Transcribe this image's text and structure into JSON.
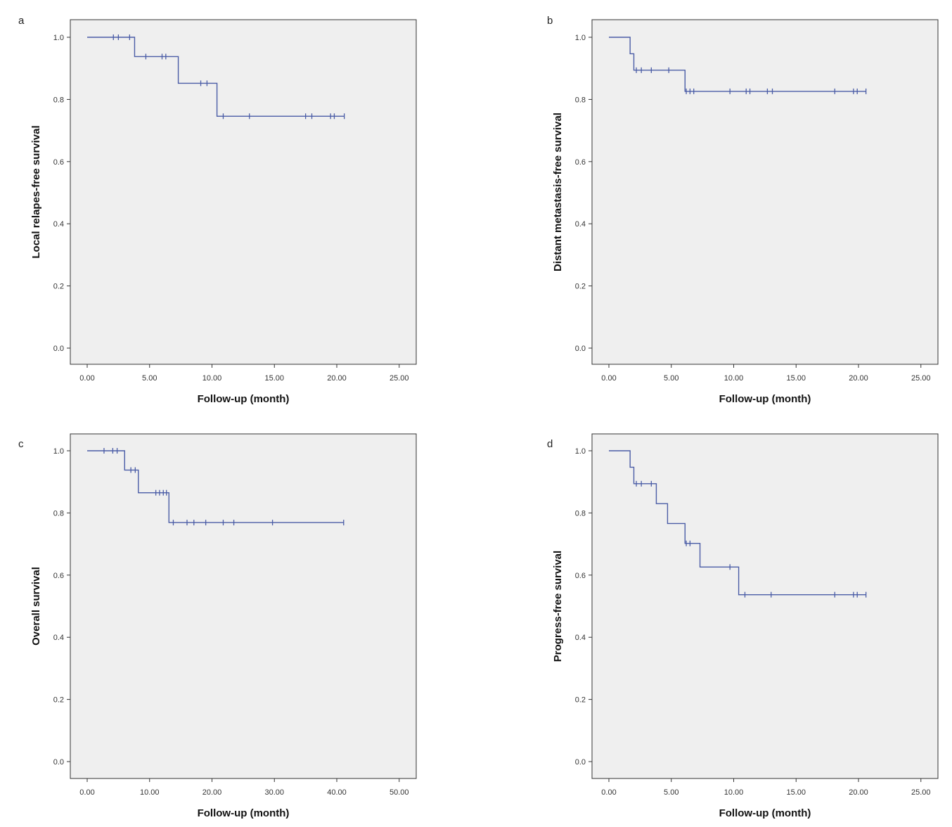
{
  "chart_data": [
    {
      "panel": "a",
      "type": "line",
      "subtype": "kaplan-meier",
      "xlabel": "Follow-up (month)",
      "ylabel": "Local relapes-free survival",
      "xlim": [
        0,
        25
      ],
      "ylim": [
        0,
        1
      ],
      "xticks": [
        "0.00",
        "5.00",
        "10.00",
        "15.00",
        "20.00",
        "25.00"
      ],
      "yticks": [
        "0.0",
        "0.2",
        "0.4",
        "0.6",
        "0.8",
        "1.0"
      ],
      "series": [
        {
          "name": "survival",
          "color": "#4a5ca6",
          "steps": [
            [
              0,
              1.0
            ],
            [
              3.8,
              0.938
            ],
            [
              7.3,
              0.852
            ],
            [
              10.4,
              0.746
            ],
            [
              20.6,
              0.746
            ]
          ],
          "censored": [
            [
              2.1,
              1.0
            ],
            [
              2.5,
              1.0
            ],
            [
              3.4,
              1.0
            ],
            [
              4.7,
              0.938
            ],
            [
              6.0,
              0.938
            ],
            [
              6.3,
              0.938
            ],
            [
              9.1,
              0.852
            ],
            [
              9.6,
              0.852
            ],
            [
              10.9,
              0.746
            ],
            [
              13.0,
              0.746
            ],
            [
              17.5,
              0.746
            ],
            [
              18.0,
              0.746
            ],
            [
              19.5,
              0.746
            ],
            [
              19.8,
              0.746
            ],
            [
              20.6,
              0.746
            ]
          ]
        }
      ]
    },
    {
      "panel": "b",
      "type": "line",
      "subtype": "kaplan-meier",
      "xlabel": "Follow-up (month)",
      "ylabel": "Distant metastasis-free survival",
      "xlim": [
        0,
        25
      ],
      "ylim": [
        0,
        1
      ],
      "xticks": [
        "0.00",
        "5.00",
        "10.00",
        "15.00",
        "20.00",
        "25.00"
      ],
      "yticks": [
        "0.0",
        "0.2",
        "0.4",
        "0.6",
        "0.8",
        "1.0"
      ],
      "series": [
        {
          "name": "survival",
          "color": "#4a5ca6",
          "steps": [
            [
              0,
              1.0
            ],
            [
              1.7,
              0.947
            ],
            [
              2.0,
              0.894
            ],
            [
              6.1,
              0.826
            ],
            [
              20.6,
              0.826
            ]
          ],
          "censored": [
            [
              2.2,
              0.894
            ],
            [
              2.6,
              0.894
            ],
            [
              3.4,
              0.894
            ],
            [
              4.8,
              0.894
            ],
            [
              6.2,
              0.826
            ],
            [
              6.5,
              0.826
            ],
            [
              6.8,
              0.826
            ],
            [
              9.7,
              0.826
            ],
            [
              11.0,
              0.826
            ],
            [
              11.3,
              0.826
            ],
            [
              12.7,
              0.826
            ],
            [
              13.1,
              0.826
            ],
            [
              18.1,
              0.826
            ],
            [
              19.6,
              0.826
            ],
            [
              19.9,
              0.826
            ],
            [
              20.6,
              0.826
            ]
          ]
        }
      ]
    },
    {
      "panel": "c",
      "type": "line",
      "subtype": "kaplan-meier",
      "xlabel": "Follow-up (month)",
      "ylabel": "Overall survival",
      "xlim": [
        0,
        50
      ],
      "ylim": [
        0,
        1
      ],
      "xticks": [
        "0.00",
        "10.00",
        "20.00",
        "30.00",
        "40.00",
        "50.00"
      ],
      "yticks": [
        "0.0",
        "0.2",
        "0.4",
        "0.6",
        "0.8",
        "1.0"
      ],
      "series": [
        {
          "name": "survival",
          "color": "#4a5ca6",
          "steps": [
            [
              0,
              1.0
            ],
            [
              6.0,
              0.938
            ],
            [
              8.2,
              0.865
            ],
            [
              13.1,
              0.769
            ],
            [
              41.1,
              0.769
            ]
          ],
          "censored": [
            [
              2.7,
              1.0
            ],
            [
              4.1,
              1.0
            ],
            [
              4.8,
              1.0
            ],
            [
              7.0,
              0.938
            ],
            [
              7.7,
              0.938
            ],
            [
              11.0,
              0.865
            ],
            [
              11.6,
              0.865
            ],
            [
              12.2,
              0.865
            ],
            [
              12.7,
              0.865
            ],
            [
              13.8,
              0.769
            ],
            [
              16.0,
              0.769
            ],
            [
              17.1,
              0.769
            ],
            [
              19.0,
              0.769
            ],
            [
              21.8,
              0.769
            ],
            [
              23.5,
              0.769
            ],
            [
              29.7,
              0.769
            ],
            [
              41.1,
              0.769
            ]
          ]
        }
      ]
    },
    {
      "panel": "d",
      "type": "line",
      "subtype": "kaplan-meier",
      "xlabel": "Follow-up (month)",
      "ylabel": "Progress-free survival",
      "xlim": [
        0,
        25
      ],
      "ylim": [
        0,
        1
      ],
      "xticks": [
        "0.00",
        "5.00",
        "10.00",
        "15.00",
        "20.00",
        "25.00"
      ],
      "yticks": [
        "0.0",
        "0.2",
        "0.4",
        "0.6",
        "0.8",
        "1.0"
      ],
      "series": [
        {
          "name": "survival",
          "color": "#4a5ca6",
          "steps": [
            [
              0,
              1.0
            ],
            [
              1.7,
              0.947
            ],
            [
              2.0,
              0.894
            ],
            [
              3.8,
              0.83
            ],
            [
              4.7,
              0.766
            ],
            [
              6.1,
              0.702
            ],
            [
              7.3,
              0.626
            ],
            [
              10.4,
              0.537
            ],
            [
              20.6,
              0.537
            ]
          ],
          "censored": [
            [
              2.2,
              0.894
            ],
            [
              2.6,
              0.894
            ],
            [
              3.4,
              0.894
            ],
            [
              6.2,
              0.702
            ],
            [
              6.5,
              0.702
            ],
            [
              9.7,
              0.626
            ],
            [
              10.9,
              0.537
            ],
            [
              13.0,
              0.537
            ],
            [
              18.1,
              0.537
            ],
            [
              19.6,
              0.537
            ],
            [
              19.9,
              0.537
            ],
            [
              20.6,
              0.537
            ]
          ]
        }
      ]
    }
  ]
}
